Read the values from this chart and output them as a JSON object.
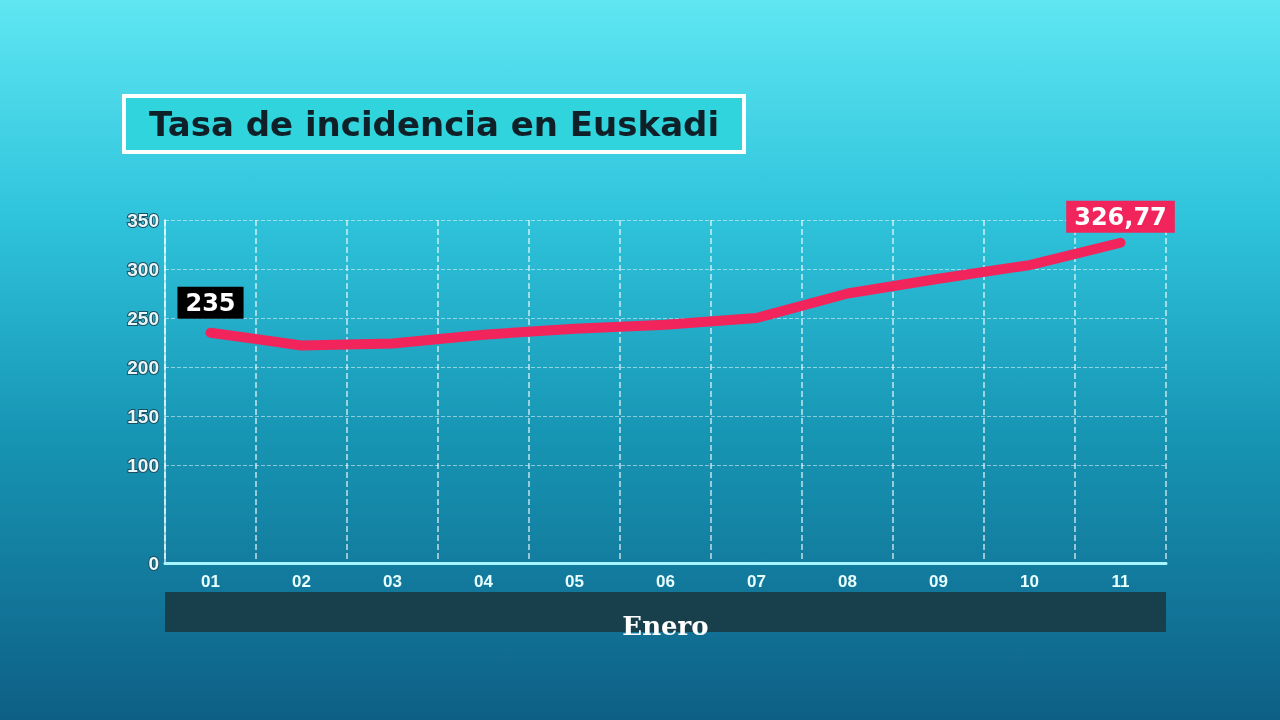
{
  "chart_data": {
    "type": "line",
    "title": "Tasa de incidencia en Euskadi",
    "xlabel": "Enero",
    "categories": [
      "01",
      "02",
      "03",
      "04",
      "05",
      "06",
      "07",
      "08",
      "09",
      "10",
      "11"
    ],
    "series": [
      {
        "color": "#f2245c",
        "values": [
          235,
          222,
          224,
          233,
          239,
          243,
          250,
          275,
          290,
          304,
          326.77
        ],
        "value_labels": [
          "235",
          null,
          null,
          null,
          null,
          null,
          null,
          null,
          null,
          null,
          "326,77"
        ]
      }
    ],
    "ylim": [
      0,
      350
    ],
    "yticks": [
      0,
      100,
      150,
      200,
      250,
      300,
      350
    ],
    "grid": true,
    "marker": "none",
    "line_style": "solid"
  }
}
